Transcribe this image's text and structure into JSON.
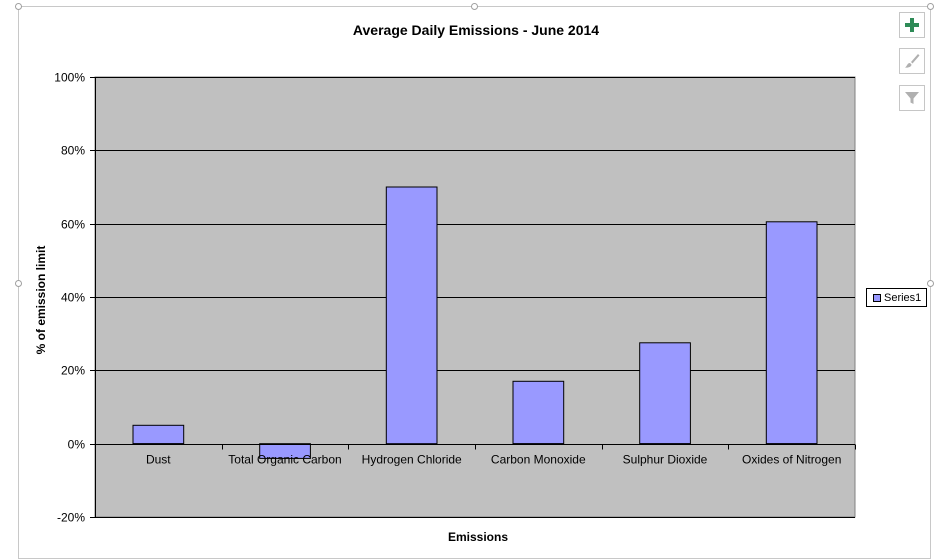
{
  "chart_data": {
    "type": "bar",
    "title": "Average Daily Emissions - June 2014",
    "xlabel": "Emissions",
    "ylabel": "% of emission limit",
    "categories": [
      "Dust",
      "Total Organic Carbon",
      "Hydrogen Chloride",
      "Carbon Monoxide",
      "Sulphur Dioxide",
      "Oxides of Nitrogen"
    ],
    "series": [
      {
        "name": "Series1",
        "values": [
          5,
          -4,
          70,
          17,
          27.5,
          60.5
        ]
      }
    ],
    "ylim": [
      -20,
      100
    ],
    "yticks": [
      -20,
      0,
      20,
      40,
      60,
      80,
      100
    ],
    "ytick_labels": [
      "-20%",
      "0%",
      "20%",
      "40%",
      "60%",
      "80%",
      "100%"
    ],
    "grid": true,
    "legend_position": "right",
    "colors": {
      "bar": "#9999ff",
      "plot_background": "#c0c0c0",
      "gridline": "#000000"
    }
  },
  "legend": {
    "series_label": "Series1"
  },
  "toolbar": {
    "icons": [
      "plus-icon",
      "brush-icon",
      "filter-icon"
    ]
  }
}
